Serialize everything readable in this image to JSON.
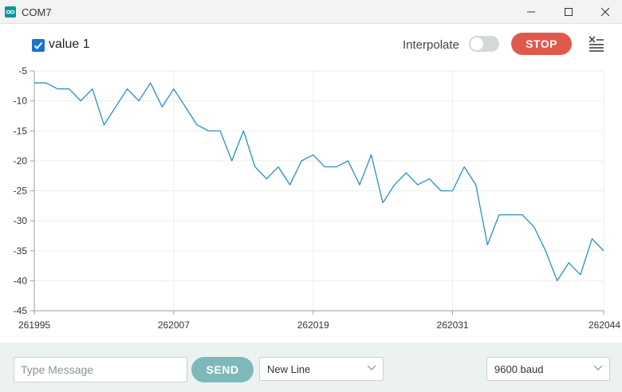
{
  "window": {
    "title": "COM7",
    "app_icon": "arduino-infinity-icon",
    "controls": [
      "minimize-icon",
      "maximize-icon",
      "close-icon"
    ]
  },
  "toolbar": {
    "legend_label": "value 1",
    "legend_checked": true,
    "interpolate_label": "Interpolate",
    "interpolate_on": false,
    "stop_label": "STOP",
    "clear_icon": "clear-output-icon"
  },
  "chart_data": {
    "type": "line",
    "title": "",
    "xlabel": "",
    "ylabel": "",
    "xlim": [
      261995,
      262044
    ],
    "ylim": [
      -45,
      -5
    ],
    "x_ticks": [
      "261995",
      "262007",
      "262019",
      "262031",
      "262044"
    ],
    "y_ticks": [
      "-5",
      "-10",
      "-15",
      "-20",
      "-25",
      "-30",
      "-35",
      "-40",
      "-45"
    ],
    "grid": true,
    "series": [
      {
        "name": "value 1",
        "color": "#2a8fc0",
        "x": [
          261995,
          261996,
          261997,
          261998,
          261999,
          262000,
          262001,
          262002,
          262003,
          262004,
          262005,
          262006,
          262007,
          262008,
          262009,
          262010,
          262011,
          262012,
          262013,
          262014,
          262015,
          262016,
          262017,
          262018,
          262019,
          262020,
          262021,
          262022,
          262023,
          262024,
          262025,
          262026,
          262027,
          262028,
          262029,
          262030,
          262031,
          262032,
          262033,
          262034,
          262035,
          262036,
          262037,
          262038,
          262039,
          262040,
          262041,
          262042,
          262043,
          262044
        ],
        "values": [
          -7,
          -7,
          -8,
          -8,
          -10,
          -8,
          -14,
          -11,
          -8,
          -10,
          -7,
          -11,
          -8,
          -11,
          -14,
          -15,
          -15,
          -20,
          -15,
          -21,
          -23,
          -21,
          -24,
          -20,
          -19,
          -21,
          -21,
          -20,
          -24,
          -19,
          -27,
          -24,
          -22,
          -24,
          -23,
          -25,
          -25,
          -21,
          -24,
          -34,
          -29,
          -29,
          -29,
          -31,
          -35,
          -40,
          -37,
          -39,
          -33,
          -35
        ]
      }
    ]
  },
  "bottombar": {
    "message_placeholder": "Type Message",
    "send_label": "SEND",
    "line_ending": "New Line",
    "baud_rate": "9600 baud"
  }
}
